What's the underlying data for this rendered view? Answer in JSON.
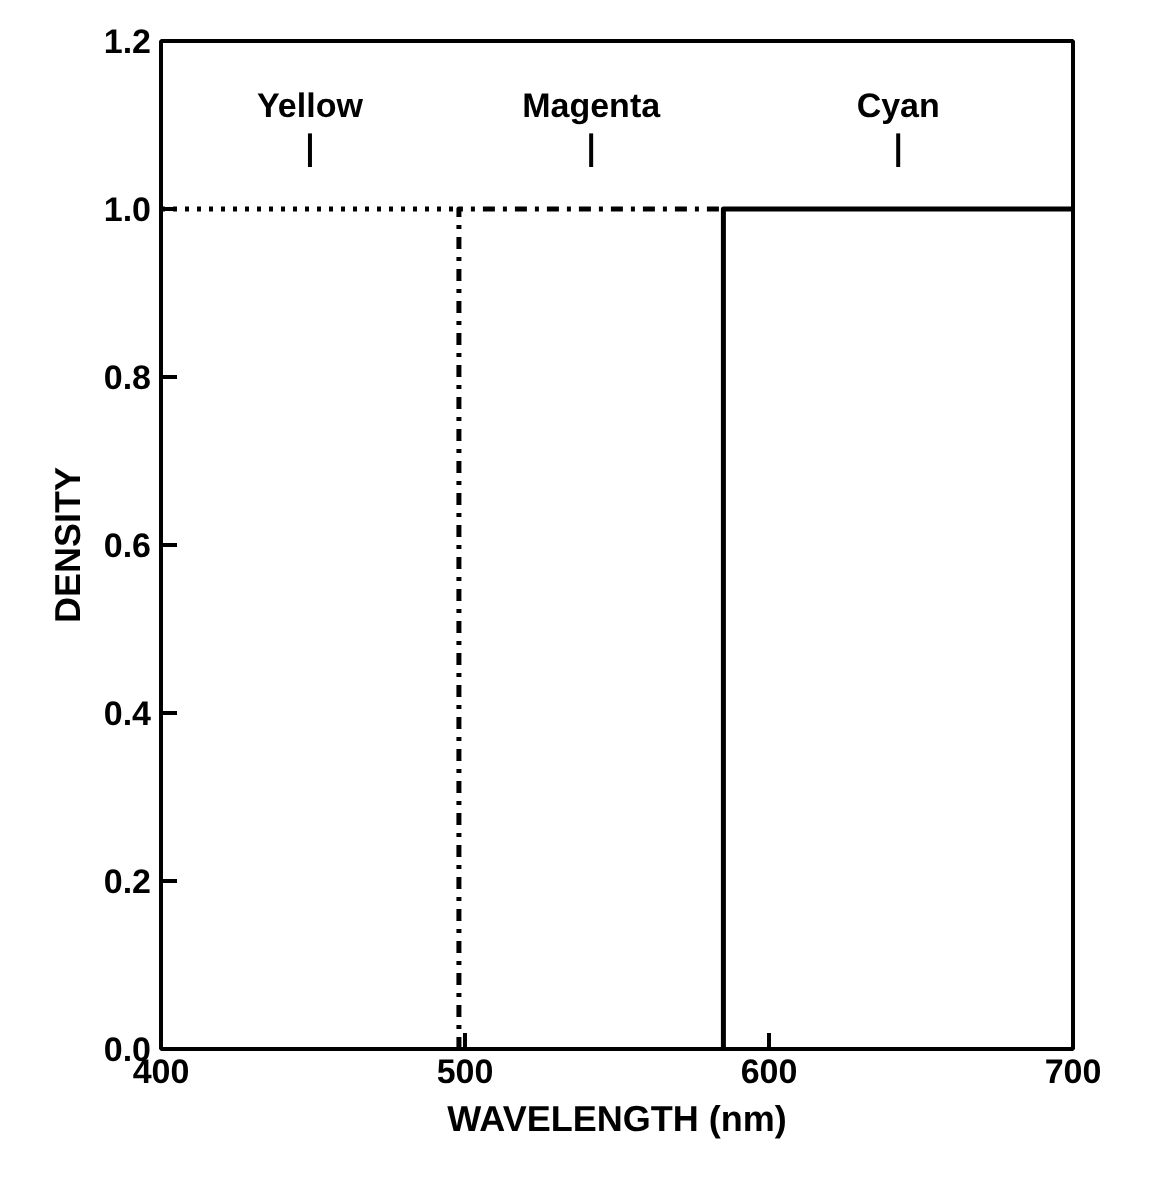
{
  "chart_data": {
    "type": "line",
    "xlabel": "WAVELENGTH (nm)",
    "ylabel": "DENSITY",
    "xlim": [
      400,
      700
    ],
    "ylim": [
      0,
      1.2
    ],
    "xticks": [
      400,
      500,
      600,
      700
    ],
    "yticks": [
      {
        "value": 0,
        "label": "0.0"
      },
      {
        "value": 0.2,
        "label": "0.2"
      },
      {
        "value": 0.4,
        "label": "0.4"
      },
      {
        "value": 0.6,
        "label": "0.6"
      },
      {
        "value": 0.8,
        "label": "0.8"
      },
      {
        "value": 1.0,
        "label": "1.0"
      },
      {
        "value": 1.2,
        "label": "1.2"
      }
    ],
    "grid": false,
    "marker": "none",
    "series": [
      {
        "name": "Yellow",
        "color": "#000000",
        "line_style": "dotted",
        "x": [
          400,
          498
        ],
        "values": [
          1.0,
          1.0
        ]
      },
      {
        "name": "Magenta",
        "color": "#000000",
        "line_style": "dashdot",
        "x": [
          498,
          498,
          585
        ],
        "values": [
          0,
          1.0,
          1.0
        ]
      },
      {
        "name": "Cyan",
        "color": "#000000",
        "line_style": "solid",
        "x": [
          585,
          585,
          700
        ],
        "values": [
          0,
          1.0,
          1.0
        ]
      }
    ]
  }
}
